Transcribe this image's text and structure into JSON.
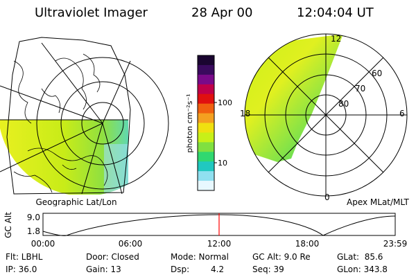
{
  "header": {
    "title": "Ultraviolet Imager",
    "date": "28 Apr 00",
    "time": "12:04:04 UT"
  },
  "left_map": {
    "caption": "Geographic Lat/Lon"
  },
  "right_map": {
    "caption": "Apex MLat/MLT",
    "mlt_labels": {
      "top": "12",
      "left": "18",
      "right": "6",
      "bottom": "0"
    },
    "mlat_labels": [
      "60",
      "70",
      "80"
    ]
  },
  "colorbar": {
    "unit": "photon cm⁻²s⁻¹",
    "ticks": [
      "100",
      "10"
    ],
    "colors": [
      "#1a0530",
      "#3a0a5e",
      "#7a0a8a",
      "#c0004a",
      "#e01010",
      "#f06010",
      "#f4a020",
      "#f0e010",
      "#c8f018",
      "#80e040",
      "#30d870",
      "#20c8c0",
      "#90e0f0",
      "#e8f8ff"
    ]
  },
  "altitude_plot": {
    "ylabel": "GC Alt",
    "y_ticks": [
      "9.0",
      "1.8"
    ],
    "x_ticks": [
      "00:00",
      "06:00",
      "12:00",
      "18:00",
      "23:59"
    ],
    "current_marker_color": "#ff0000"
  },
  "status": {
    "row1": {
      "filter": "Flt: LBHL",
      "door": "Door: Closed",
      "mode": "Mode: Normal",
      "gc_alt": "GC Alt: 9.0 Re",
      "glat": "GLat:  85.6"
    },
    "row2": {
      "ip": "IP: 36.0",
      "gain": "Gain: 13",
      "dsp_label": "Dsp:",
      "dsp_value": "4.2",
      "seq": "Seq: 39",
      "glon": "GLon: 343.8"
    }
  }
}
